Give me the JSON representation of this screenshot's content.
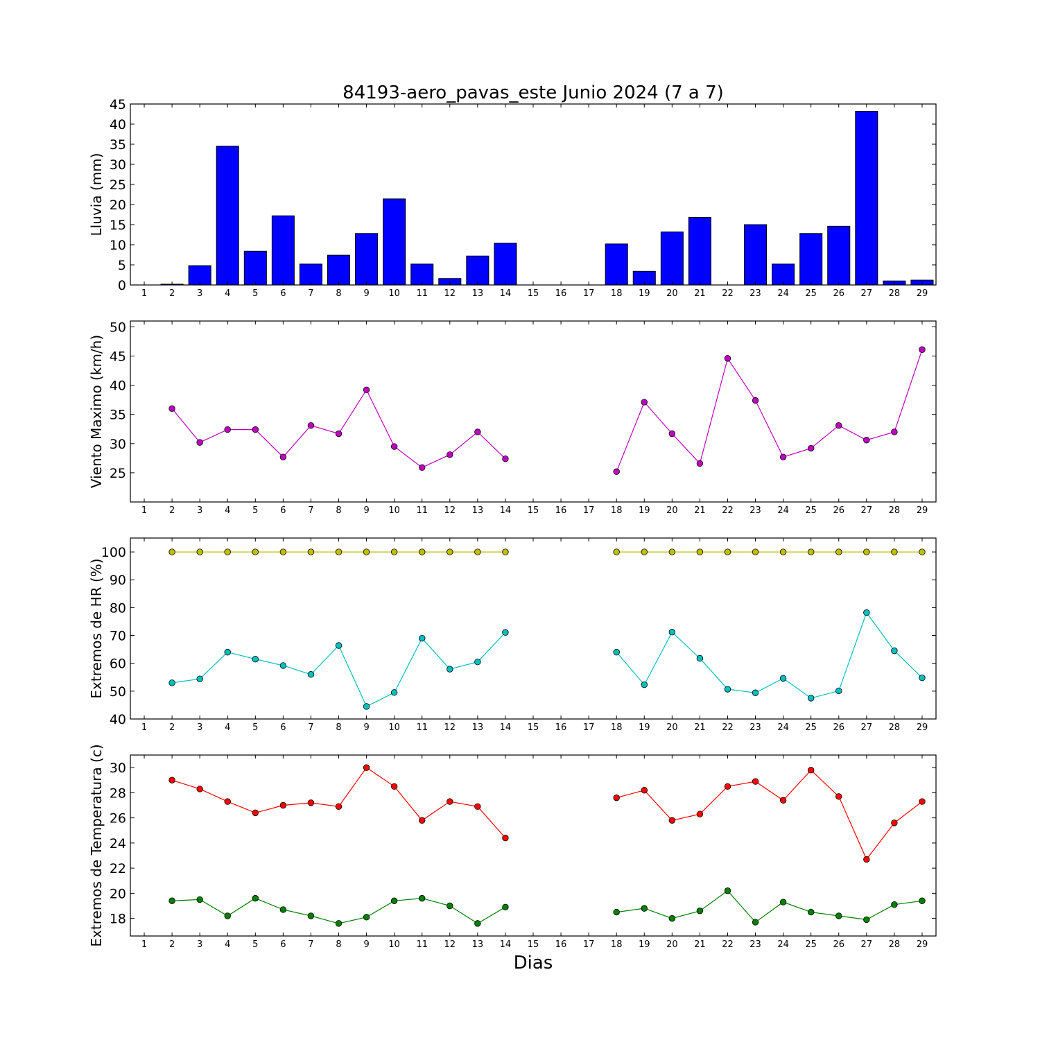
{
  "title": "84193-aero_pavas_este Junio 2024  (7 a 7)",
  "xlabel": "Dias",
  "days": [
    1,
    2,
    3,
    4,
    5,
    6,
    7,
    8,
    9,
    10,
    11,
    12,
    13,
    14,
    15,
    16,
    17,
    18,
    19,
    20,
    21,
    22,
    23,
    24,
    25,
    26,
    27,
    28,
    29
  ],
  "chart_data": [
    {
      "type": "bar",
      "ylabel": "Lluvia (mm)",
      "ylim": [
        0,
        45
      ],
      "yticks": [
        0,
        5,
        10,
        15,
        20,
        25,
        30,
        35,
        40,
        45
      ],
      "color": "#0000ff",
      "x": [
        1,
        2,
        3,
        4,
        5,
        6,
        7,
        8,
        9,
        10,
        11,
        12,
        13,
        14,
        15,
        16,
        17,
        18,
        19,
        20,
        21,
        22,
        23,
        24,
        25,
        26,
        27,
        28,
        29
      ],
      "values": [
        0,
        0.2,
        4.8,
        34.5,
        8.4,
        17.2,
        5.2,
        7.4,
        12.8,
        21.4,
        5.2,
        1.6,
        7.2,
        10.4,
        0,
        0,
        0,
        10.2,
        3.4,
        13.2,
        16.8,
        0,
        15.0,
        5.2,
        12.8,
        14.6,
        43.2,
        1.0,
        1.2
      ]
    },
    {
      "type": "line",
      "ylabel": "Viento Maximo (km/h)",
      "ylim": [
        20,
        51
      ],
      "yticks": [
        25,
        30,
        35,
        40,
        45,
        50
      ],
      "x": [
        1,
        2,
        3,
        4,
        5,
        6,
        7,
        8,
        9,
        10,
        11,
        12,
        13,
        14,
        15,
        16,
        17,
        18,
        19,
        20,
        21,
        22,
        23,
        24,
        25,
        26,
        27,
        28,
        29
      ],
      "series": [
        {
          "color": "#bf00bf",
          "values": [
            null,
            36.0,
            30.2,
            32.4,
            32.4,
            27.7,
            33.1,
            31.7,
            39.2,
            29.5,
            25.9,
            28.1,
            32.0,
            27.4,
            null,
            null,
            null,
            25.2,
            37.1,
            31.7,
            26.6,
            44.6,
            37.4,
            27.7,
            29.2,
            33.1,
            30.6,
            32.0,
            46.1
          ]
        }
      ]
    },
    {
      "type": "line",
      "ylabel": "Extremos de HR (%)",
      "ylim": [
        40,
        105
      ],
      "yticks": [
        40,
        50,
        60,
        70,
        80,
        90,
        100
      ],
      "x": [
        1,
        2,
        3,
        4,
        5,
        6,
        7,
        8,
        9,
        10,
        11,
        12,
        13,
        14,
        15,
        16,
        17,
        18,
        19,
        20,
        21,
        22,
        23,
        24,
        25,
        26,
        27,
        28,
        29
      ],
      "series": [
        {
          "color": "#bfbf00",
          "values": [
            null,
            100,
            100,
            100,
            100,
            100,
            100,
            100,
            100,
            100,
            100,
            100,
            100,
            100,
            null,
            null,
            null,
            100,
            100,
            100,
            100,
            100,
            100,
            100,
            100,
            100,
            100,
            100,
            100
          ]
        },
        {
          "color": "#00bfbf",
          "values": [
            null,
            53.0,
            54.4,
            64.0,
            61.5,
            59.2,
            56.0,
            66.4,
            44.5,
            49.5,
            69.0,
            57.9,
            60.5,
            71.1,
            null,
            null,
            null,
            64.0,
            52.3,
            71.2,
            61.8,
            50.7,
            49.4,
            54.6,
            47.5,
            50.1,
            78.2,
            64.5,
            54.8
          ]
        }
      ]
    },
    {
      "type": "line",
      "ylabel": "Extremos de Temperatura (c)",
      "ylim": [
        16.6,
        31.0
      ],
      "yticks": [
        18,
        20,
        22,
        24,
        26,
        28,
        30
      ],
      "x": [
        1,
        2,
        3,
        4,
        5,
        6,
        7,
        8,
        9,
        10,
        11,
        12,
        13,
        14,
        15,
        16,
        17,
        18,
        19,
        20,
        21,
        22,
        23,
        24,
        25,
        26,
        27,
        28,
        29
      ],
      "series": [
        {
          "color": "#ff0000",
          "values": [
            null,
            29.0,
            28.3,
            27.3,
            26.4,
            27.0,
            27.2,
            26.9,
            30.0,
            28.5,
            25.8,
            27.3,
            26.9,
            24.4,
            null,
            null,
            null,
            27.6,
            28.2,
            25.8,
            26.3,
            28.5,
            28.9,
            27.4,
            29.8,
            27.7,
            22.7,
            25.6,
            27.3
          ]
        },
        {
          "color": "#007f00",
          "values": [
            null,
            19.4,
            19.5,
            18.2,
            19.6,
            18.7,
            18.2,
            17.6,
            18.1,
            19.4,
            19.6,
            19.0,
            17.6,
            18.9,
            null,
            null,
            null,
            18.5,
            18.8,
            18.0,
            18.6,
            20.2,
            17.7,
            19.3,
            18.5,
            18.2,
            17.9,
            19.1,
            19.4
          ]
        }
      ]
    }
  ]
}
